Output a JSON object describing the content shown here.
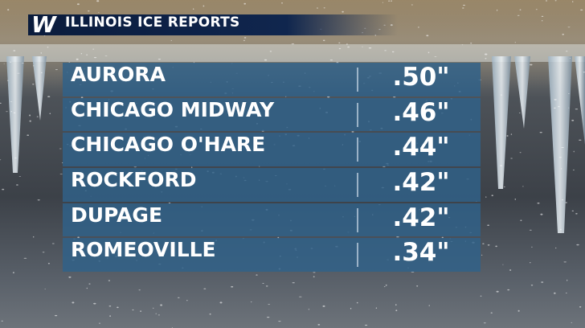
{
  "header": {
    "logo": "W",
    "title": "ILLINOIS ICE REPORTS"
  },
  "table": {
    "rows": [
      [
        "AURORA",
        ".50\""
      ],
      [
        "CHICAGO MIDWAY",
        ".46\""
      ],
      [
        "CHICAGO O'HARE",
        ".44\""
      ],
      [
        "ROCKFORD",
        ".42\""
      ],
      [
        "DUPAGE",
        ".42\""
      ],
      [
        "ROMEOVILLE",
        ".34\""
      ]
    ]
  }
}
